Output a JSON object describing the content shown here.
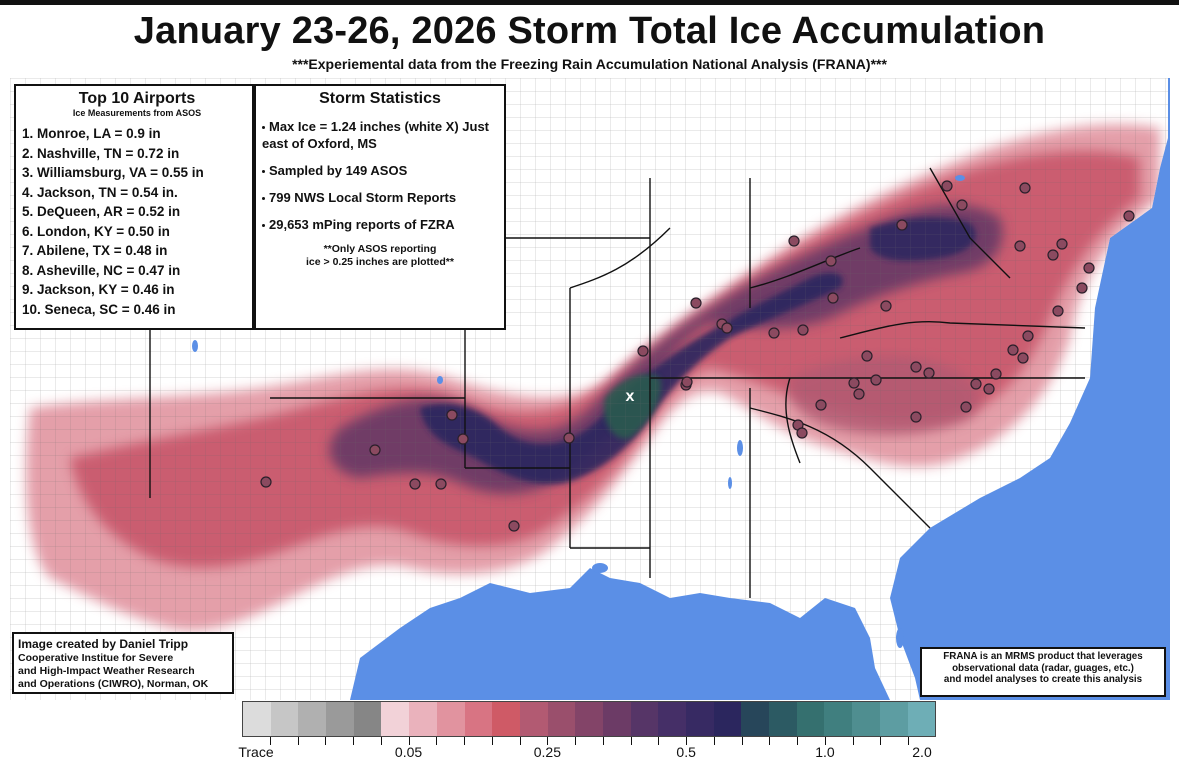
{
  "title": "January 23-26, 2026 Storm Total Ice Accumulation",
  "subtitle": "***Experiemental data from the Freezing Rain Accumulation National Analysis (FRANA)***",
  "airports": {
    "heading": "Top 10 Airports",
    "subheading": "Ice Measurements from ASOS",
    "items": [
      "1. Monroe, LA  = 0.9 in",
      "2. Nashville, TN = 0.72 in",
      "3. Williamsburg, VA = 0.55 in",
      "4. Jackson, TN = 0.54 in.",
      "5. DeQueen, AR = 0.52 in",
      "6. London, KY = 0.50 in",
      "7. Abilene, TX = 0.48 in",
      "8. Asheville, NC = 0.47 in",
      "9. Jackson, KY = 0.46 in",
      "10. Seneca, SC = 0.46 in"
    ]
  },
  "stats": {
    "heading": "Storm Statistics",
    "items": [
      "Max Ice = 1.24 inches (white X) Just east of Oxford, MS",
      "Sampled by 149 ASOS",
      "799 NWS Local Storm Reports",
      "29,653 mPing reports of FZRA"
    ],
    "note_line1": "**Only ASOS reporting",
    "note_line2": "ice > 0.25 inches are plotted**"
  },
  "credit": {
    "line1": "Image created by Daniel Tripp",
    "line2": "Cooperative Institue for Severe",
    "line3": "and High-Impact Weather Research",
    "line4": "and Operations (CIWRO), Norman, OK"
  },
  "frana_note": {
    "line1": "FRANA is an MRMS product that leverages",
    "line2": "observational data (radar, guages, etc.)",
    "line3": "and model analyses to create this analysis"
  },
  "colorbar": {
    "colors": [
      "#dcdcdc",
      "#c6c6c6",
      "#b0b0b0",
      "#9a9a9a",
      "#868686",
      "#f2d2d8",
      "#eab2bc",
      "#e1939f",
      "#d87483",
      "#cf5a66",
      "#b25a72",
      "#9a4f6c",
      "#834468",
      "#6c3b66",
      "#563567",
      "#452f67",
      "#372a63",
      "#2b265e",
      "#27465a",
      "#2c5a63",
      "#35706f",
      "#407f7f",
      "#4f8e90",
      "#5d9da2",
      "#6eaeb6"
    ],
    "labels": [
      "Trace",
      "0.05",
      "0.25",
      "0.5",
      "1.0",
      "2.0"
    ],
    "label_cells": [
      0,
      6,
      11,
      16,
      21,
      25
    ]
  },
  "map": {
    "max_ice_marker": "x",
    "colors": {
      "water": "#5b8fe6",
      "land": "#ffffff",
      "county_lines": "#555555",
      "state_lines": "#111111",
      "ice_light": "#e39aa5",
      "ice_mid": "#c8566a",
      "ice_heavy": "#6c3b66",
      "ice_extreme": "#2b265e",
      "ice_max": "#2c5a50",
      "asos_marker": "#8b4a60"
    },
    "asos_stations_count": 48
  }
}
